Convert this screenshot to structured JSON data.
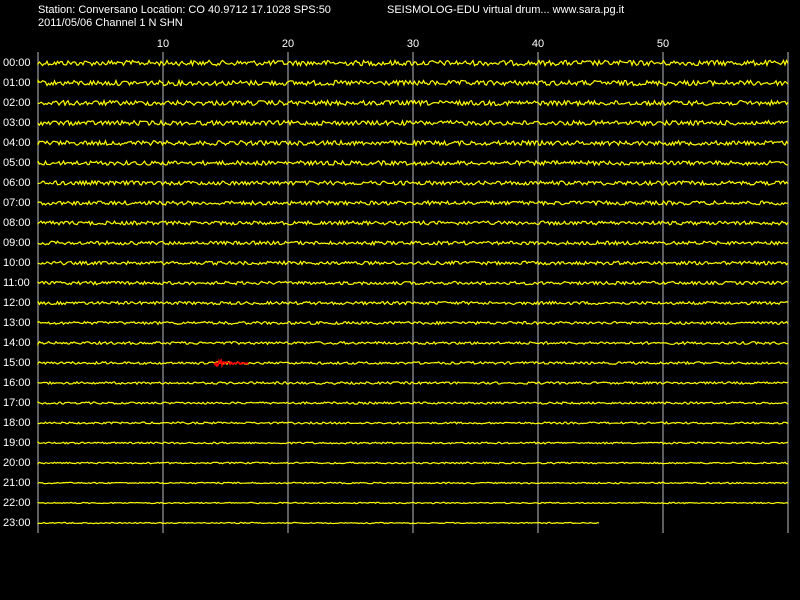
{
  "header": {
    "station": "Station: Conversano Location: CO 40.9712 17.1028 SPS:50",
    "date_channel": "2011/05/06  Channel 1 N SHN",
    "app": "SEISMOLOG-EDU virtual drum... www.sara.pg.it"
  },
  "minute_ticks": [
    10,
    20,
    30,
    40,
    50
  ],
  "hours": [
    "00:00",
    "01:00",
    "02:00",
    "03:00",
    "04:00",
    "05:00",
    "06:00",
    "07:00",
    "08:00",
    "09:00",
    "10:00",
    "11:00",
    "12:00",
    "13:00",
    "14:00",
    "15:00",
    "16:00",
    "17:00",
    "18:00",
    "19:00",
    "20:00",
    "21:00",
    "22:00",
    "23:00"
  ]
}
